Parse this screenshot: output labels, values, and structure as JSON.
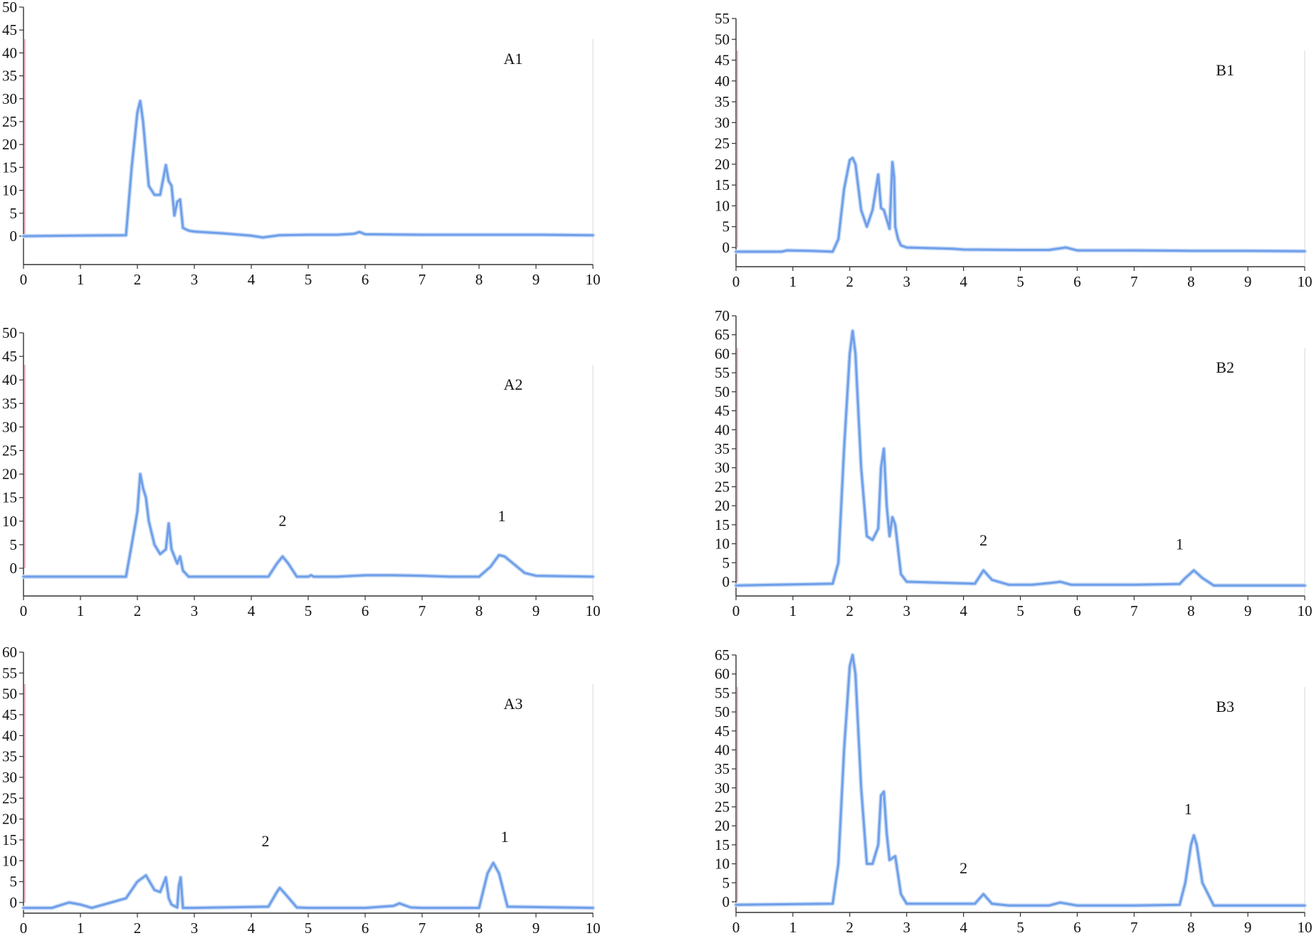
{
  "chart_data": [
    {
      "type": "line",
      "title": "A1",
      "xlim": [
        0,
        10
      ],
      "ylim": [
        0,
        50
      ],
      "xticks": [
        "0",
        "1",
        "2",
        "3",
        "4",
        "5",
        "6",
        "7",
        "8",
        "9",
        "10"
      ],
      "yticks": [
        "0",
        "5",
        "10",
        "15",
        "20",
        "25",
        "30",
        "35",
        "40",
        "45",
        "50"
      ],
      "annotations": [],
      "series": [
        {
          "x": [
            0,
            1.8,
            1.9,
            2.0,
            2.05,
            2.1,
            2.2,
            2.3,
            2.4,
            2.5,
            2.55,
            2.6,
            2.65,
            2.7,
            2.75,
            2.8,
            2.9,
            3.0,
            3.5,
            4.0,
            4.2,
            4.5,
            5.0,
            5.5,
            5.8,
            5.9,
            6.0,
            7.0,
            8.0,
            9.0,
            10.0
          ],
          "y": [
            0,
            0.2,
            15,
            27,
            29.5,
            25,
            11,
            9,
            9,
            15.5,
            12,
            11,
            4.5,
            7.5,
            8,
            1.8,
            1.2,
            1,
            0.6,
            0.1,
            -0.3,
            0.2,
            0.3,
            0.3,
            0.5,
            0.9,
            0.4,
            0.3,
            0.3,
            0.3,
            0.2
          ]
        }
      ]
    },
    {
      "type": "line",
      "title": "B1",
      "xlim": [
        0,
        10
      ],
      "ylim": [
        0,
        55
      ],
      "xticks": [
        "0",
        "1",
        "2",
        "3",
        "4",
        "5",
        "6",
        "7",
        "8",
        "9",
        "10"
      ],
      "yticks": [
        "0",
        "5",
        "10",
        "15",
        "20",
        "25",
        "30",
        "35",
        "40",
        "45",
        "50",
        "55"
      ],
      "annotations": [],
      "series": [
        {
          "x": [
            0,
            0.8,
            0.9,
            1.3,
            1.7,
            1.8,
            1.9,
            2.0,
            2.05,
            2.1,
            2.2,
            2.3,
            2.4,
            2.5,
            2.55,
            2.6,
            2.7,
            2.75,
            2.78,
            2.8,
            2.85,
            2.9,
            3.0,
            3.8,
            4.0,
            5.0,
            5.5,
            5.8,
            6.0,
            7.0,
            8.0,
            9.0,
            10.0
          ],
          "y": [
            -1,
            -1,
            -0.7,
            -0.8,
            -1,
            2,
            14,
            21,
            21.5,
            20,
            9,
            5,
            9,
            17.5,
            9.5,
            9,
            4.5,
            20.5,
            17,
            5,
            2,
            0.5,
            0,
            -0.3,
            -0.5,
            -0.6,
            -0.6,
            0,
            -0.7,
            -0.7,
            -0.8,
            -0.8,
            -0.9
          ]
        }
      ]
    },
    {
      "type": "line",
      "title": "A2",
      "xlim": [
        0,
        10
      ],
      "ylim": [
        0,
        50
      ],
      "xticks": [
        "0",
        "1",
        "2",
        "3",
        "4",
        "5",
        "6",
        "7",
        "8",
        "9",
        "10"
      ],
      "yticks": [
        "0",
        "5",
        "10",
        "15",
        "20",
        "25",
        "30",
        "35",
        "40",
        "45",
        "50"
      ],
      "annotations": [
        {
          "text": "2",
          "x": 4.55,
          "y": 9
        },
        {
          "text": "1",
          "x": 8.4,
          "y": 10
        }
      ],
      "series": [
        {
          "x": [
            0,
            1.8,
            1.9,
            2.0,
            2.05,
            2.1,
            2.15,
            2.2,
            2.3,
            2.4,
            2.5,
            2.55,
            2.6,
            2.7,
            2.75,
            2.8,
            2.9,
            3.0,
            4.3,
            4.45,
            4.55,
            4.65,
            4.8,
            5.0,
            5.05,
            5.1,
            5.5,
            6.0,
            6.5,
            7.0,
            7.5,
            8.0,
            8.2,
            8.35,
            8.45,
            8.6,
            8.8,
            9.0,
            10.0
          ],
          "y": [
            -1.8,
            -1.8,
            5,
            12,
            20,
            17,
            15,
            10,
            5,
            3,
            4,
            9.5,
            4,
            1,
            2.5,
            -0.5,
            -1.8,
            -1.8,
            -1.8,
            1,
            2.5,
            1,
            -1.8,
            -1.8,
            -1.5,
            -1.8,
            -1.8,
            -1.5,
            -1.5,
            -1.6,
            -1.8,
            -1.8,
            0.3,
            2.8,
            2.5,
            1,
            -1,
            -1.6,
            -1.8
          ]
        }
      ]
    },
    {
      "type": "line",
      "title": "B2",
      "xlim": [
        0,
        10
      ],
      "ylim": [
        0,
        70
      ],
      "xticks": [
        "0",
        "1",
        "2",
        "3",
        "4",
        "5",
        "6",
        "7",
        "8",
        "9",
        "10"
      ],
      "yticks": [
        "0",
        "5",
        "10",
        "15",
        "20",
        "25",
        "30",
        "35",
        "40",
        "45",
        "50",
        "55",
        "60",
        "65",
        "70"
      ],
      "annotations": [
        {
          "text": "2",
          "x": 4.35,
          "y": 9.5
        },
        {
          "text": "1",
          "x": 7.8,
          "y": 8.5
        }
      ],
      "series": [
        {
          "x": [
            0,
            1.7,
            1.8,
            1.9,
            2.0,
            2.05,
            2.1,
            2.2,
            2.3,
            2.4,
            2.5,
            2.55,
            2.6,
            2.65,
            2.7,
            2.75,
            2.8,
            2.9,
            3.0,
            4.2,
            4.35,
            4.5,
            4.8,
            5.2,
            5.6,
            5.7,
            5.9,
            7.0,
            7.8,
            7.9,
            8.05,
            8.2,
            8.4,
            10.0
          ],
          "y": [
            -1,
            -0.5,
            5,
            35,
            60,
            66,
            60,
            30,
            12,
            11,
            14,
            30,
            35,
            20,
            12,
            17,
            15,
            2,
            0,
            -0.5,
            3,
            0.5,
            -0.8,
            -0.8,
            -0.2,
            0,
            -0.8,
            -0.8,
            -0.6,
            1,
            3,
            1,
            -1,
            -1
          ]
        }
      ]
    },
    {
      "type": "line",
      "title": "A3",
      "xlim": [
        0,
        10
      ],
      "ylim": [
        0,
        60
      ],
      "xticks": [
        "0",
        "1",
        "2",
        "3",
        "4",
        "5",
        "6",
        "7",
        "8",
        "9",
        "10"
      ],
      "yticks": [
        "0",
        "5",
        "10",
        "15",
        "20",
        "25",
        "30",
        "35",
        "40",
        "45",
        "50",
        "55",
        "60"
      ],
      "annotations": [
        {
          "text": "2",
          "x": 4.25,
          "y": 13.5
        },
        {
          "text": "1",
          "x": 8.45,
          "y": 14.5
        }
      ],
      "series": [
        {
          "x": [
            0,
            0.5,
            0.8,
            1.0,
            1.2,
            1.8,
            2.0,
            2.1,
            2.15,
            2.3,
            2.4,
            2.5,
            2.55,
            2.6,
            2.7,
            2.73,
            2.76,
            2.8,
            3.0,
            4.3,
            4.45,
            4.5,
            4.6,
            4.8,
            5.0,
            6.0,
            6.5,
            6.6,
            6.8,
            7.0,
            8.0,
            8.15,
            8.25,
            8.35,
            8.5,
            10.0
          ],
          "y": [
            -1.3,
            -1.3,
            0,
            -0.5,
            -1.3,
            1,
            5,
            6,
            6.5,
            3,
            2.5,
            6,
            1,
            -0.5,
            -1.2,
            4,
            6,
            -1.3,
            -1.3,
            -1,
            2.5,
            3.5,
            2,
            -1.2,
            -1.3,
            -1.3,
            -0.8,
            -0.2,
            -1.2,
            -1.3,
            -1.3,
            7,
            9.5,
            7,
            -1,
            -1.3
          ]
        }
      ]
    },
    {
      "type": "line",
      "title": "B3",
      "xlim": [
        0,
        10
      ],
      "ylim": [
        0,
        65
      ],
      "xticks": [
        "0",
        "1",
        "2",
        "3",
        "4",
        "5",
        "6",
        "7",
        "8",
        "9",
        "10"
      ],
      "yticks": [
        "0",
        "5",
        "10",
        "15",
        "20",
        "25",
        "30",
        "35",
        "40",
        "45",
        "50",
        "55",
        "60",
        "65"
      ],
      "annotations": [
        {
          "text": "2",
          "x": 4.0,
          "y": 7.5
        },
        {
          "text": "1",
          "x": 7.95,
          "y": 23
        }
      ],
      "series": [
        {
          "x": [
            0,
            1.7,
            1.8,
            1.9,
            2.0,
            2.05,
            2.1,
            2.2,
            2.3,
            2.4,
            2.5,
            2.55,
            2.6,
            2.65,
            2.7,
            2.8,
            2.9,
            3.0,
            4.2,
            4.35,
            4.5,
            4.8,
            5.5,
            5.7,
            6.0,
            7.0,
            7.8,
            7.9,
            8.0,
            8.05,
            8.1,
            8.2,
            8.4,
            10.0
          ],
          "y": [
            -0.8,
            -0.5,
            10,
            40,
            62,
            65,
            60,
            30,
            10,
            10,
            15,
            28,
            29,
            18,
            11,
            12,
            2,
            -0.5,
            -0.5,
            2,
            -0.5,
            -1,
            -1,
            -0.2,
            -1,
            -1,
            -0.8,
            5,
            15,
            17.5,
            15,
            5,
            -1,
            -1
          ]
        }
      ]
    }
  ]
}
